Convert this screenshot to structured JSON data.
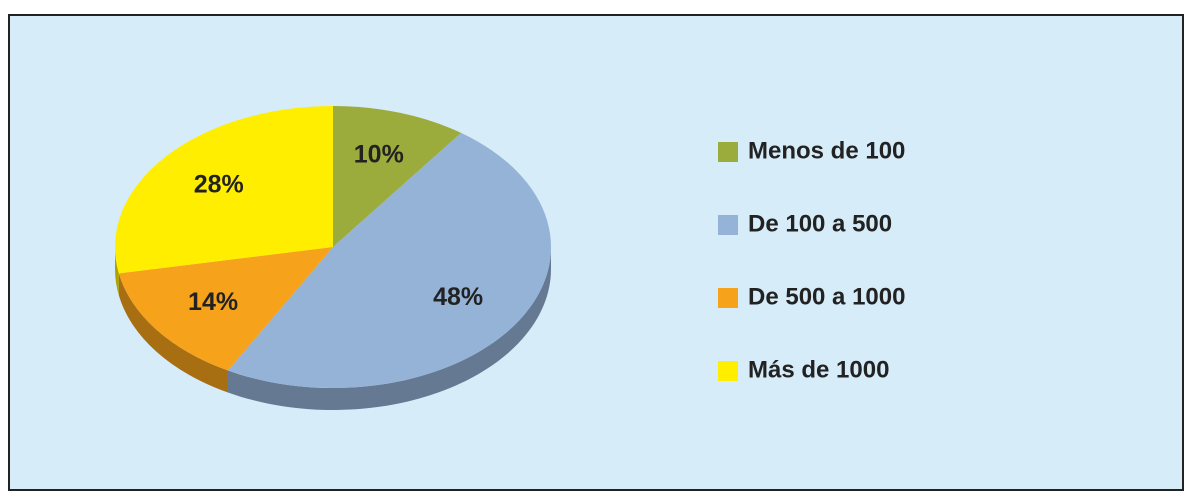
{
  "chart_data": {
    "type": "pie",
    "categories": [
      "Menos de 100",
      "De 100 a 500",
      "De 500 a 1000",
      "Más de 1000"
    ],
    "values": [
      10,
      48,
      14,
      28
    ],
    "value_labels": [
      "10%",
      "48%",
      "14%",
      "28%"
    ],
    "colors": [
      "#9bab3c",
      "#95b3d7",
      "#f7a21b",
      "#ffee00"
    ],
    "legend": "right"
  }
}
